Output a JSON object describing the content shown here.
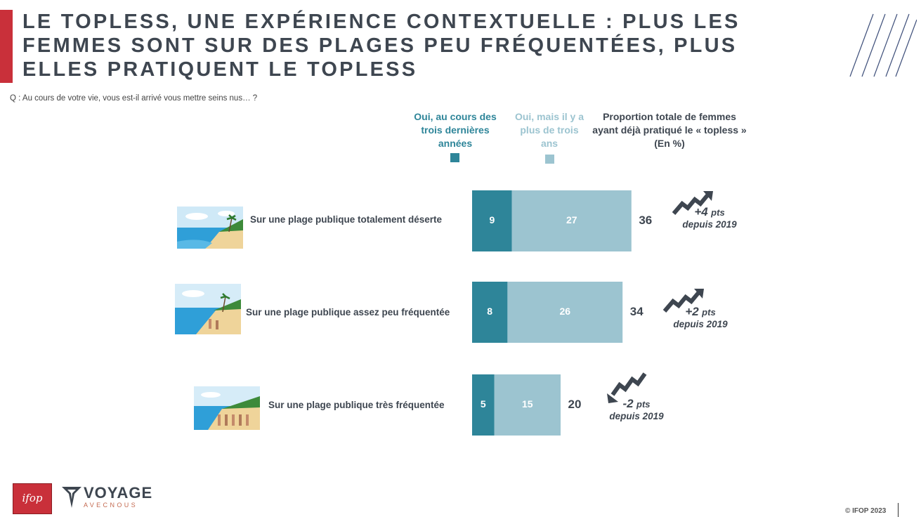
{
  "title": "LE TOPLESS, UNE EXPÉRIENCE CONTEXTUELLE : PLUS LES FEMMES SONT SUR DES PLAGES PEU FRÉQUENTÉES, PLUS ELLES PRATIQUENT LE TOPLESS",
  "question": "Q : Au cours de votre vie, vous est-il arrivé vous mettre seins nus… ?",
  "legend": {
    "recent": "Oui, au cours des trois dernières années",
    "older": "Oui, mais il y a plus de trois ans",
    "total": "Proportion totale de femmes ayant déjà pratiqué le « topless » (En %)"
  },
  "colors": {
    "recent": "#2e8599",
    "older": "#9cc4d0",
    "accent_red": "#c9303a",
    "text_dark": "#3e4650"
  },
  "chart_data": {
    "type": "bar",
    "orientation": "horizontal",
    "stacked": true,
    "categories": [
      "Sur une plage publique totalement déserte",
      "Sur une plage publique assez peu fréquentée",
      "Sur une plage publique très fréquentée"
    ],
    "series": [
      {
        "name": "Oui, au cours des trois dernières années",
        "values": [
          9,
          8,
          5
        ]
      },
      {
        "name": "Oui, mais il y a plus de trois ans",
        "values": [
          27,
          26,
          15
        ]
      }
    ],
    "totals": [
      36,
      34,
      20
    ],
    "evolution": [
      {
        "change": "+4",
        "unit": "pts",
        "since": "depuis 2019",
        "direction": "up"
      },
      {
        "change": "+2",
        "unit": "pts",
        "since": "depuis 2019",
        "direction": "up"
      },
      {
        "change": "-2",
        "unit": "pts",
        "since": "depuis 2019",
        "direction": "down"
      }
    ]
  },
  "rows": [
    {
      "label": "Sur une plage publique totalement déserte",
      "image": "deserted-beach-image"
    },
    {
      "label": "Sur une plage publique assez peu fréquentée",
      "image": "quiet-beach-image"
    },
    {
      "label": "Sur une plage publique très fréquentée",
      "image": "crowded-beach-image"
    }
  ],
  "logos": {
    "ifop": "ifop",
    "partner_main": "VOYAGE",
    "partner_sub": "AVECNOUS"
  },
  "footer": {
    "copyright": "© IFOP 2023"
  }
}
